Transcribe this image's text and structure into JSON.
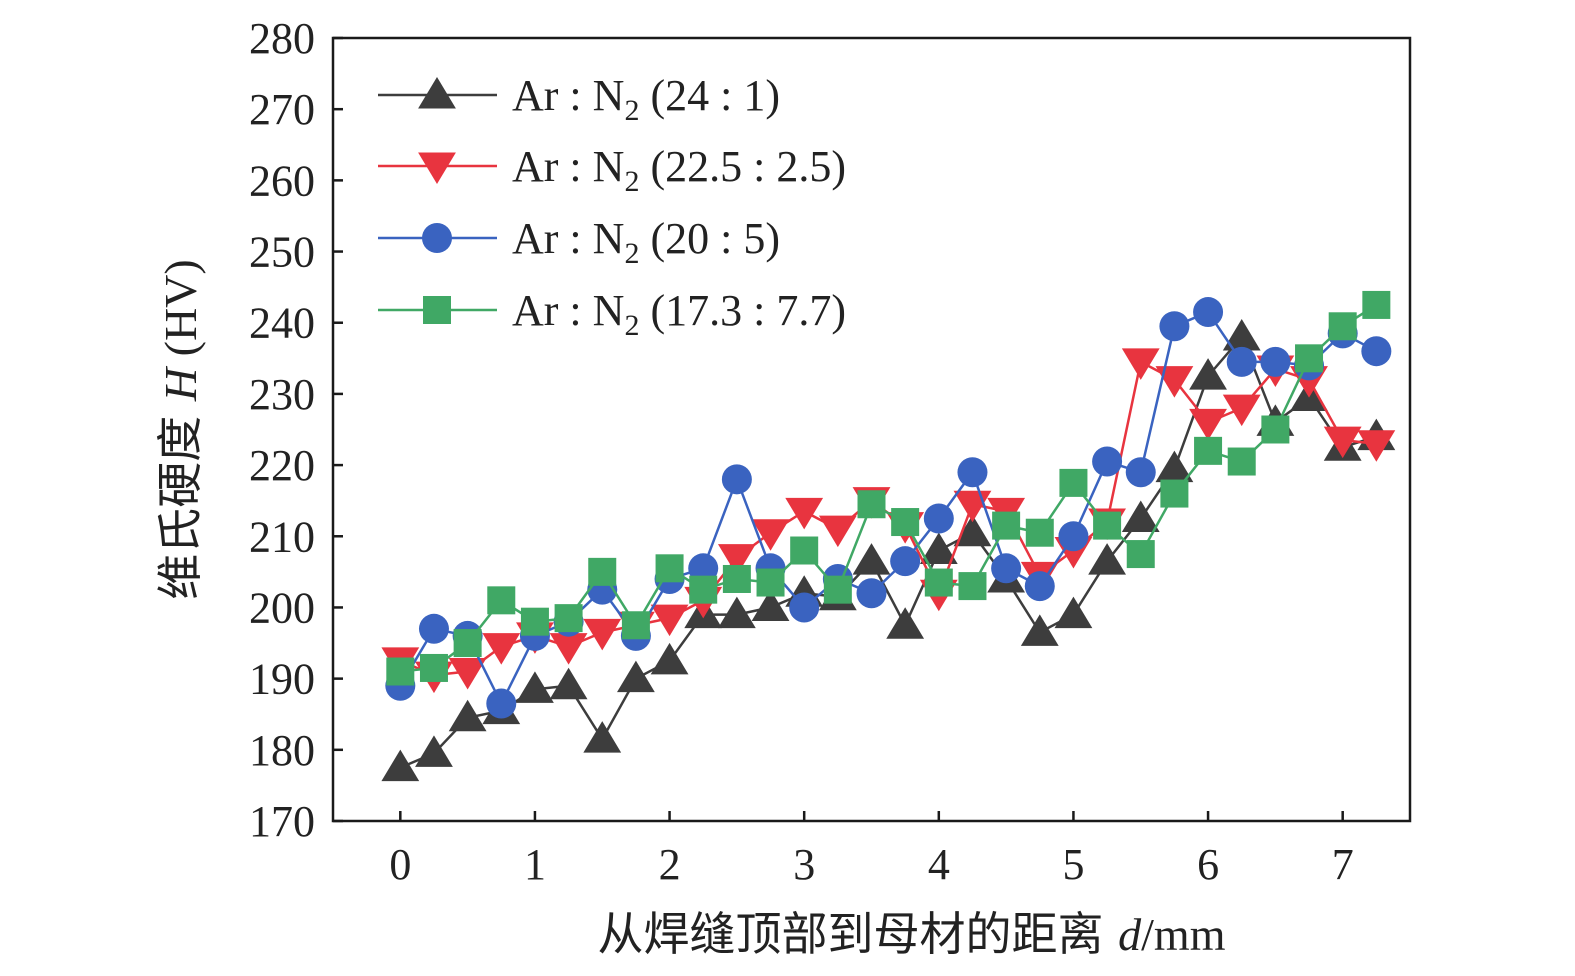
{
  "chart_data": {
    "type": "line",
    "title": "",
    "xlabel": "从焊缝顶部到母材的距离 d/mm",
    "xlabel_parts": {
      "main": "从焊缝顶部到母材的距离 ",
      "var": "d",
      "unit": "/mm"
    },
    "ylabel": "维氏硬度 H (HV)",
    "ylabel_parts": {
      "main": "维氏硬度 ",
      "var": "H",
      "unit": " (HV)"
    },
    "xlim": [
      -0.5,
      7.5
    ],
    "ylim": [
      170,
      280
    ],
    "xticks": [
      "0",
      "1",
      "2",
      "3",
      "4",
      "5",
      "6",
      "7"
    ],
    "yticks": [
      "170",
      "180",
      "190",
      "200",
      "210",
      "220",
      "230",
      "240",
      "250",
      "260",
      "270",
      "280"
    ],
    "x": [
      0,
      0.25,
      0.5,
      0.75,
      1,
      1.25,
      1.5,
      1.75,
      2,
      2.25,
      2.5,
      2.75,
      3,
      3.25,
      3.5,
      3.75,
      4,
      4.25,
      4.5,
      4.75,
      5,
      5.25,
      5.5,
      5.75,
      6,
      6.25,
      6.5,
      6.75,
      7,
      7.25
    ],
    "legend_position": "top-left",
    "series": [
      {
        "name": "Ar : N2 (24 : 1)",
        "legend_prefix": "Ar : N",
        "legend_sub": "2",
        "legend_suffix": " (24 : 1)",
        "color": "#3d3d3d",
        "marker": "triangle-up",
        "values": [
          177.5,
          179.5,
          184.5,
          185.5,
          188.5,
          189,
          181.5,
          190,
          192.5,
          199,
          199,
          200,
          202,
          201.5,
          206.5,
          197.5,
          208,
          210.5,
          204,
          196.5,
          199,
          206.5,
          212.5,
          219.5,
          232.5,
          238,
          226,
          229.5,
          222.5,
          224
        ]
      },
      {
        "name": "Ar : N2 (22.5 : 2.5)",
        "legend_prefix": "Ar : N",
        "legend_sub": "2",
        "legend_suffix": " (22.5 : 2.5)",
        "color": "#e8343f",
        "marker": "triangle-down",
        "values": [
          192.5,
          190.5,
          191,
          194.5,
          196,
          194.5,
          196.5,
          197.5,
          198.5,
          201,
          207,
          210.5,
          213.5,
          211,
          215,
          211.5,
          202,
          214.5,
          213.5,
          204.5,
          208,
          212,
          234.5,
          232,
          226,
          228,
          233.5,
          232,
          223.5,
          223
        ]
      },
      {
        "name": "Ar : N2 (20 : 5)",
        "legend_prefix": "Ar : N",
        "legend_sub": "2",
        "legend_suffix": " (20 : 5)",
        "color": "#3a63c0",
        "marker": "circle",
        "values": [
          189,
          197,
          196,
          186.5,
          196,
          198,
          202.5,
          196,
          204,
          205.5,
          218,
          205.5,
          200,
          204,
          202,
          206.5,
          212.5,
          219,
          205.5,
          203,
          210,
          220.5,
          219,
          239.5,
          241.5,
          234.5,
          234.5,
          234,
          238.5,
          236
        ]
      },
      {
        "name": "Ar : N2 (17.3 : 7.7)",
        "legend_prefix": "Ar : N",
        "legend_sub": "2",
        "legend_suffix": " (17.3 : 7.7)",
        "color": "#40a865",
        "marker": "square",
        "values": [
          191,
          191.5,
          195,
          201,
          198,
          198.5,
          205,
          197.5,
          205.5,
          202.5,
          204,
          203.5,
          208,
          202.5,
          214.5,
          212,
          203.5,
          203,
          211.5,
          210.5,
          217.5,
          211.5,
          207.5,
          216,
          222,
          220.5,
          225,
          235,
          239.5,
          242.5
        ]
      }
    ]
  }
}
